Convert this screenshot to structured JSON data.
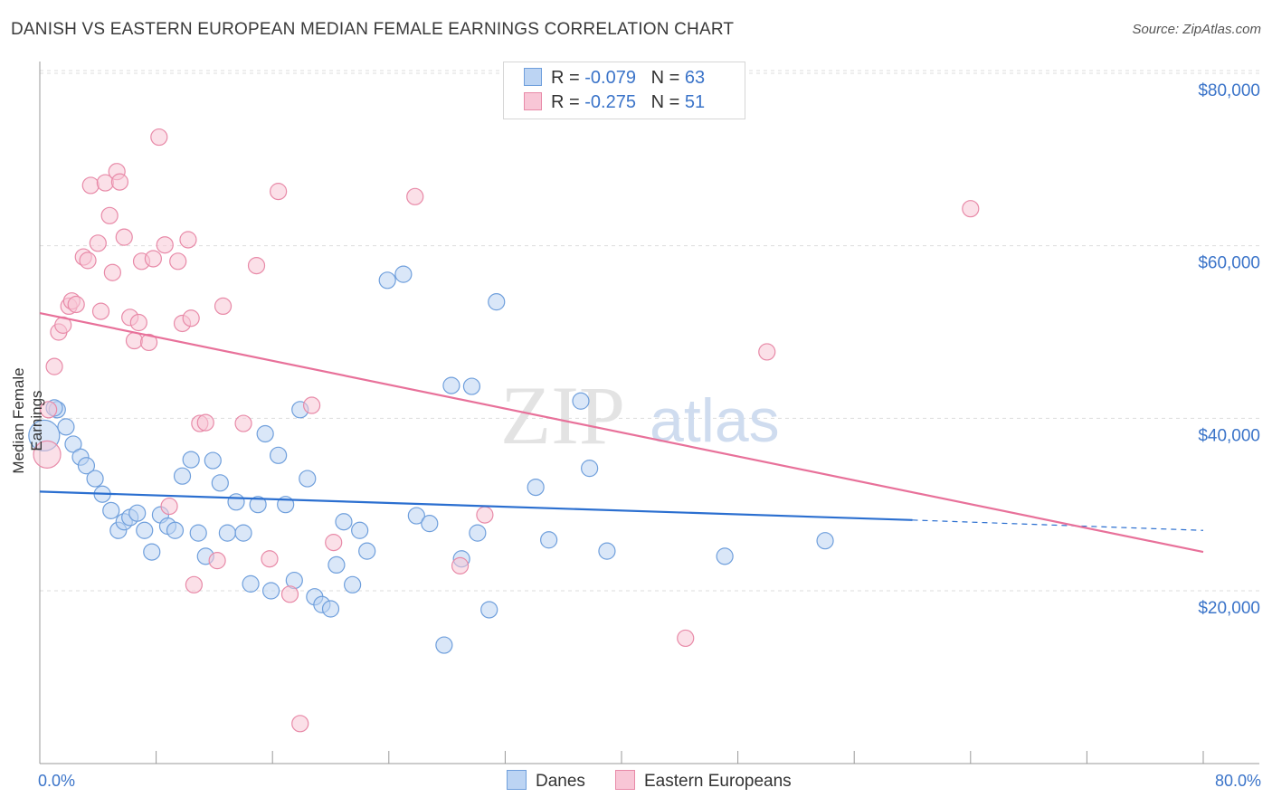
{
  "title": "DANISH VS EASTERN EUROPEAN MEDIAN FEMALE EARNINGS CORRELATION CHART",
  "source": "Source: ZipAtlas.com",
  "watermark": {
    "zip": "ZIP",
    "atlas": "atlas"
  },
  "legend": {
    "rows": [
      {
        "r_label": "R =",
        "r_value": "-0.079",
        "n_label": "N =",
        "n_value": "63"
      },
      {
        "r_label": "R =",
        "r_value": "-0.275",
        "n_label": "N =",
        "n_value": "51"
      }
    ]
  },
  "bottom_legend": {
    "danes": "Danes",
    "eastern": "Eastern Europeans"
  },
  "colors": {
    "danes_fill": "#bcd4f3",
    "danes_stroke": "#6f9fdc",
    "danes_line": "#2b6fd0",
    "eastern_fill": "#f8c6d6",
    "eastern_stroke": "#e88aa8",
    "eastern_line": "#e8719a",
    "tick_label": "#3b74c9",
    "grid": "#dddddd"
  },
  "chart_data": {
    "type": "scatter",
    "title": "DANISH VS EASTERN EUROPEAN MEDIAN FEMALE EARNINGS CORRELATION CHART",
    "xlabel": "",
    "ylabel": "Median Female Earnings",
    "xlim": [
      0,
      80
    ],
    "ylim": [
      0,
      82000
    ],
    "x_tick_labels": [
      "0.0%",
      "80.0%"
    ],
    "y_ticks": [
      20000,
      40000,
      60000,
      80000
    ],
    "y_tick_labels": [
      "$20,000",
      "$40,000",
      "$60,000",
      "$80,000"
    ],
    "grid": "horizontal dashed",
    "legend_position": "top-center",
    "series": [
      {
        "name": "Danes",
        "r": -0.079,
        "n": 63,
        "trend": {
          "x0": 0,
          "y0": 31500,
          "x_solid_end": 60,
          "y_solid_end": 28200,
          "x1": 80,
          "y1": 27000
        },
        "points": [
          [
            0.3,
            38000
          ],
          [
            1.2,
            41000
          ],
          [
            1.8,
            39000
          ],
          [
            2.3,
            37000
          ],
          [
            2.8,
            35500
          ],
          [
            3.2,
            34500
          ],
          [
            3.8,
            33000
          ],
          [
            4.3,
            31200
          ],
          [
            4.9,
            29300
          ],
          [
            5.4,
            27000
          ],
          [
            5.8,
            28000
          ],
          [
            6.2,
            28500
          ],
          [
            6.7,
            29000
          ],
          [
            7.2,
            27000
          ],
          [
            7.7,
            24500
          ],
          [
            8.3,
            28800
          ],
          [
            8.8,
            27500
          ],
          [
            9.3,
            27000
          ],
          [
            9.8,
            33300
          ],
          [
            10.4,
            35200
          ],
          [
            10.9,
            26700
          ],
          [
            11.4,
            24000
          ],
          [
            11.9,
            35100
          ],
          [
            12.4,
            32500
          ],
          [
            12.9,
            26700
          ],
          [
            13.5,
            30300
          ],
          [
            14.0,
            26700
          ],
          [
            14.5,
            20800
          ],
          [
            15.0,
            30000
          ],
          [
            15.5,
            38200
          ],
          [
            15.9,
            20000
          ],
          [
            16.4,
            35700
          ],
          [
            16.9,
            30000
          ],
          [
            17.5,
            21200
          ],
          [
            17.9,
            41000
          ],
          [
            18.4,
            33000
          ],
          [
            18.9,
            19300
          ],
          [
            19.4,
            18400
          ],
          [
            20.0,
            17900
          ],
          [
            20.4,
            23000
          ],
          [
            20.9,
            28000
          ],
          [
            21.5,
            20700
          ],
          [
            22.0,
            27000
          ],
          [
            22.5,
            24600
          ],
          [
            23.9,
            56000
          ],
          [
            25.0,
            56700
          ],
          [
            25.9,
            28700
          ],
          [
            26.8,
            27800
          ],
          [
            27.8,
            13700
          ],
          [
            28.3,
            43800
          ],
          [
            29.0,
            23700
          ],
          [
            29.7,
            43700
          ],
          [
            30.1,
            26700
          ],
          [
            30.9,
            17800
          ],
          [
            31.4,
            53500
          ],
          [
            34.1,
            32000
          ],
          [
            35.0,
            25900
          ],
          [
            37.2,
            42000
          ],
          [
            37.8,
            34200
          ],
          [
            39.0,
            24600
          ],
          [
            47.1,
            24000
          ],
          [
            54.0,
            25800
          ],
          [
            1.0,
            41200
          ]
        ]
      },
      {
        "name": "Eastern Europeans",
        "r": -0.275,
        "n": 51,
        "trend": {
          "x0": 0,
          "y0": 52200,
          "x1": 80,
          "y1": 24500
        },
        "points": [
          [
            0.5,
            35800
          ],
          [
            0.6,
            41000
          ],
          [
            1.0,
            46000
          ],
          [
            1.3,
            50000
          ],
          [
            1.6,
            50800
          ],
          [
            2.0,
            53000
          ],
          [
            2.2,
            53600
          ],
          [
            2.5,
            53200
          ],
          [
            3.0,
            58700
          ],
          [
            3.3,
            58300
          ],
          [
            3.5,
            67000
          ],
          [
            4.0,
            60300
          ],
          [
            4.2,
            52400
          ],
          [
            4.5,
            67300
          ],
          [
            4.8,
            63500
          ],
          [
            5.0,
            56900
          ],
          [
            5.3,
            68600
          ],
          [
            5.5,
            67400
          ],
          [
            5.8,
            61000
          ],
          [
            6.2,
            51700
          ],
          [
            6.5,
            49000
          ],
          [
            6.8,
            51100
          ],
          [
            7.0,
            58200
          ],
          [
            7.5,
            48800
          ],
          [
            7.8,
            58500
          ],
          [
            8.2,
            72600
          ],
          [
            8.6,
            60100
          ],
          [
            8.9,
            29800
          ],
          [
            9.5,
            58200
          ],
          [
            9.8,
            51000
          ],
          [
            10.2,
            60700
          ],
          [
            10.4,
            51600
          ],
          [
            10.6,
            20700
          ],
          [
            11.0,
            39400
          ],
          [
            11.4,
            39500
          ],
          [
            12.2,
            23500
          ],
          [
            12.6,
            53000
          ],
          [
            14.0,
            39400
          ],
          [
            14.9,
            57700
          ],
          [
            15.8,
            23700
          ],
          [
            16.4,
            66300
          ],
          [
            17.2,
            19600
          ],
          [
            17.9,
            4600
          ],
          [
            18.7,
            41500
          ],
          [
            20.2,
            25600
          ],
          [
            25.8,
            65700
          ],
          [
            28.9,
            22900
          ],
          [
            30.6,
            28800
          ],
          [
            44.4,
            14500
          ],
          [
            50.0,
            47700
          ],
          [
            64.0,
            64300
          ]
        ]
      }
    ]
  }
}
